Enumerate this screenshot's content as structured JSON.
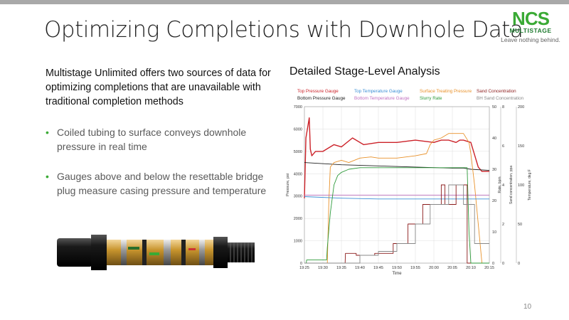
{
  "slide": {
    "title": "Optimizing Completions with Downhole Data",
    "logo_main": "NCS",
    "logo_sub": "MULTISTAGE",
    "logo_tagline": "Leave nothing behind.",
    "intro": "Multistage Unlimited offers two sources of data for optimizing completions that are unavailable with traditional completion methods",
    "bullets": [
      "Coiled tubing to surface conveys downhole pressure in real time",
      "Gauges above and below the resettable bridge plug measure casing pressure and temperature"
    ],
    "page_number": "10",
    "colors": {
      "accent": "#3aaa35",
      "topbar": "#a9a9a9"
    }
  },
  "chart_title": "Detailed Stage-Level Analysis",
  "chart_data": {
    "type": "line",
    "legend": [
      {
        "label": "Top Pressure Gauge",
        "color": "#cc2229"
      },
      {
        "label": "Top Temperature Gauge",
        "color": "#3b8fd6"
      },
      {
        "label": "Surface Treating Pressure",
        "color": "#e8912a"
      },
      {
        "label": "Sand Concentration",
        "color": "#8b1a1a"
      },
      {
        "label": "Bottom Pressure Gauge",
        "color": "#222222"
      },
      {
        "label": "Bottom Temperature Gauge",
        "color": "#c070c0"
      },
      {
        "label": "Slurry Rate",
        "color": "#2e9a3a"
      },
      {
        "label": "BH Sand Concentration",
        "color": "#888888"
      }
    ],
    "xlabel": "Time",
    "x_ticks": [
      "19:25",
      "19:30",
      "19:35",
      "19:40",
      "19:45",
      "19:50",
      "19:55",
      "20:00",
      "20:05",
      "20:10",
      "20:15"
    ],
    "y_pressure": {
      "label": "Pressure, psi",
      "ticks": [
        "0",
        "1000",
        "2000",
        "3000",
        "4000",
        "5000",
        "6000",
        "7000"
      ],
      "ylim": [
        0,
        7000
      ]
    },
    "y_rate": {
      "label": "Rate, bpm",
      "ticks": [
        "0",
        "10",
        "20",
        "30",
        "40",
        "50"
      ],
      "ylim": [
        0,
        50
      ]
    },
    "y_sand": {
      "label": "Sand concentration, ppa",
      "ticks": [
        "0",
        "2",
        "4",
        "6",
        "8"
      ],
      "ylim": [
        0,
        8
      ]
    },
    "y_temp": {
      "label": "Temperature, deg F",
      "ticks": [
        "0",
        "50",
        "100",
        "150",
        "200"
      ],
      "ylim": [
        0,
        200
      ]
    },
    "series": [
      {
        "name": "Top Pressure Gauge",
        "axis": "pressure",
        "x": [
          0,
          0.4,
          0.8,
          1.3,
          1.6,
          2,
          3,
          5,
          8,
          10,
          13,
          16,
          20,
          25,
          30,
          35,
          37,
          39,
          41,
          42,
          43,
          45,
          47,
          48,
          50
        ],
        "y": [
          2900,
          5600,
          6000,
          6500,
          5100,
          4800,
          5000,
          5000,
          5300,
          5200,
          5600,
          5300,
          5400,
          5400,
          5500,
          5400,
          5500,
          5500,
          5400,
          5500,
          5500,
          5400,
          4300,
          4100,
          4100
        ]
      },
      {
        "name": "Bottom Pressure Gauge",
        "axis": "pressure",
        "x": [
          0,
          10,
          20,
          30,
          40,
          43,
          45,
          50
        ],
        "y": [
          4500,
          4400,
          4350,
          4300,
          4250,
          4250,
          4200,
          4150
        ]
      },
      {
        "name": "Surface Treating Pressure",
        "axis": "pressure",
        "x": [
          0,
          6.2,
          6.6,
          7,
          8,
          10,
          12,
          15,
          18,
          20,
          25,
          30,
          33,
          34,
          35,
          37,
          39,
          41,
          43,
          44.5,
          45,
          46,
          48
        ],
        "y": [
          0,
          0,
          2700,
          4300,
          4500,
          4600,
          4500,
          4700,
          4750,
          4700,
          4700,
          4800,
          4900,
          5300,
          5500,
          5600,
          5800,
          5800,
          5800,
          5400,
          4900,
          3500,
          0
        ]
      },
      {
        "name": "Top Temperature Gauge",
        "axis": "temp",
        "x": [
          0,
          10,
          20,
          30,
          40,
          45,
          47,
          50
        ],
        "y": [
          85,
          83,
          82,
          82,
          82,
          82,
          82,
          82
        ]
      },
      {
        "name": "Bottom Temperature Gauge",
        "axis": "temp",
        "x": [
          0,
          10,
          20,
          30,
          40,
          50
        ],
        "y": [
          87,
          87,
          87,
          87,
          87,
          87
        ]
      },
      {
        "name": "Slurry Rate",
        "axis": "rate",
        "x": [
          0,
          0.5,
          0.6,
          6,
          6.2,
          7,
          8,
          9,
          10,
          12,
          15,
          20,
          25,
          30,
          35,
          40,
          43,
          44,
          44.5,
          45,
          48,
          50
        ],
        "y": [
          0,
          0,
          1,
          1,
          5,
          16,
          25,
          28,
          29,
          30,
          30.5,
          30.5,
          30.5,
          30.5,
          30.5,
          30.5,
          30.5,
          30.5,
          10,
          0,
          0,
          0
        ]
      },
      {
        "name": "Sand Concentration",
        "axis": "sand",
        "x": [
          0,
          11,
          11.1,
          14,
          14,
          19,
          19,
          24,
          24,
          28,
          28,
          32,
          32,
          37,
          37,
          38,
          38,
          41,
          41,
          44,
          44,
          45
        ],
        "y": [
          0,
          0,
          0.5,
          0.5,
          0.4,
          0.4,
          0.5,
          0.5,
          1,
          1,
          2,
          2,
          3,
          3,
          4,
          4,
          3,
          3,
          4,
          4,
          0,
          0
        ]
      },
      {
        "name": "BH Sand Concentration",
        "axis": "sand",
        "x": [
          0,
          15,
          15,
          20,
          20,
          25,
          25,
          30,
          30,
          34,
          34,
          39,
          39,
          43,
          43,
          46,
          46,
          50
        ],
        "y": [
          0,
          0,
          0.4,
          0.4,
          0.6,
          0.6,
          1,
          1,
          2,
          2,
          3,
          3,
          4,
          4,
          3,
          3,
          1,
          1
        ]
      }
    ]
  }
}
